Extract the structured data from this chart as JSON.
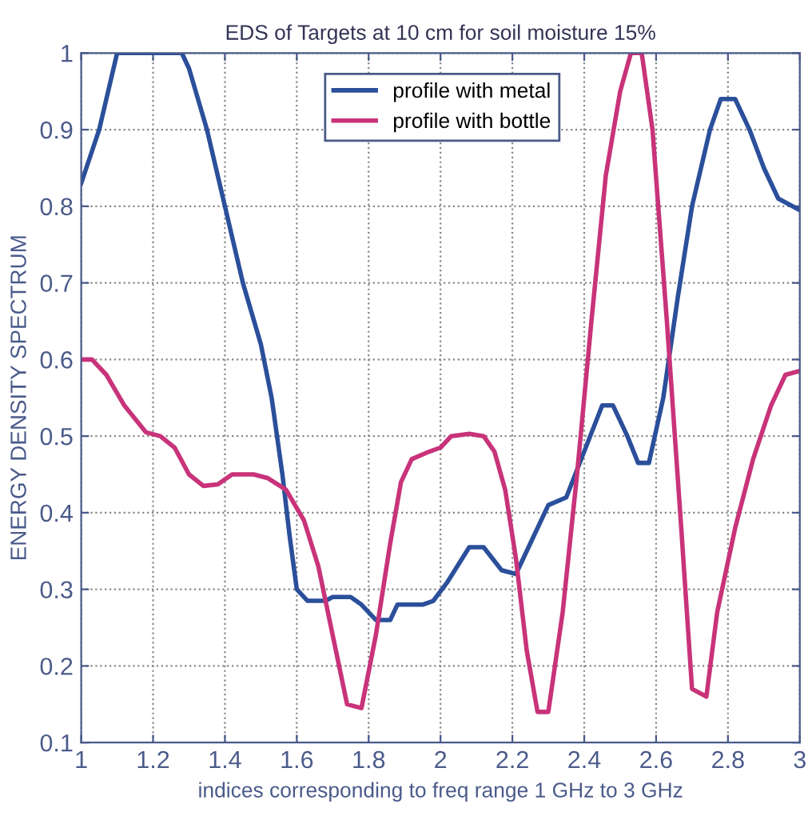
{
  "chart_data": {
    "type": "line",
    "title": "EDS of Targets at 10 cm for soil moisture 15%",
    "xlabel": "indices corresponding to freq range 1 GHz to 3 GHz",
    "ylabel": "ENERGY DENSITY SPECTRUM",
    "xlim": [
      1,
      3
    ],
    "ylim": [
      0.1,
      1
    ],
    "xticks": [
      1,
      1.2,
      1.4,
      1.6,
      1.8,
      2,
      2.2,
      2.4,
      2.6,
      2.8,
      3
    ],
    "yticks": [
      0.1,
      0.2,
      0.3,
      0.4,
      0.5,
      0.6,
      0.7,
      0.8,
      0.9,
      1
    ],
    "grid": true,
    "legend": "top right",
    "line_style": "solid",
    "series": [
      {
        "name": "profile with metal",
        "color": "#2b4f9a",
        "x": [
          1,
          1.05,
          1.1,
          1.15,
          1.2,
          1.28,
          1.3,
          1.35,
          1.4,
          1.45,
          1.5,
          1.53,
          1.56,
          1.58,
          1.6,
          1.63,
          1.68,
          1.7,
          1.75,
          1.78,
          1.82,
          1.86,
          1.88,
          1.95,
          1.98,
          2.02,
          2.08,
          2.12,
          2.17,
          2.21,
          2.25,
          2.3,
          2.35,
          2.4,
          2.45,
          2.48,
          2.52,
          2.55,
          2.58,
          2.62,
          2.66,
          2.7,
          2.75,
          2.78,
          2.82,
          2.86,
          2.9,
          2.94,
          3
        ],
        "values": [
          0.83,
          0.9,
          1,
          1,
          1,
          1,
          0.98,
          0.9,
          0.8,
          0.7,
          0.62,
          0.55,
          0.45,
          0.37,
          0.3,
          0.285,
          0.285,
          0.29,
          0.29,
          0.28,
          0.26,
          0.26,
          0.28,
          0.28,
          0.285,
          0.31,
          0.355,
          0.355,
          0.325,
          0.32,
          0.36,
          0.41,
          0.42,
          0.48,
          0.54,
          0.54,
          0.5,
          0.465,
          0.465,
          0.55,
          0.68,
          0.8,
          0.9,
          0.94,
          0.94,
          0.9,
          0.85,
          0.81,
          0.795
        ]
      },
      {
        "name": "profile with bottle",
        "color": "#c8337a",
        "x": [
          1,
          1.03,
          1.07,
          1.12,
          1.18,
          1.22,
          1.26,
          1.3,
          1.34,
          1.38,
          1.42,
          1.48,
          1.52,
          1.57,
          1.62,
          1.66,
          1.7,
          1.74,
          1.78,
          1.82,
          1.86,
          1.89,
          1.92,
          1.97,
          2,
          2.03,
          2.08,
          2.12,
          2.15,
          2.18,
          2.21,
          2.24,
          2.27,
          2.3,
          2.34,
          2.38,
          2.42,
          2.46,
          2.5,
          2.53,
          2.56,
          2.59,
          2.63,
          2.67,
          2.7,
          2.74,
          2.77,
          2.82,
          2.87,
          2.92,
          2.96,
          3
        ],
        "values": [
          0.6,
          0.6,
          0.58,
          0.54,
          0.505,
          0.5,
          0.485,
          0.45,
          0.435,
          0.437,
          0.45,
          0.45,
          0.445,
          0.43,
          0.39,
          0.33,
          0.24,
          0.15,
          0.145,
          0.24,
          0.36,
          0.44,
          0.47,
          0.48,
          0.485,
          0.5,
          0.503,
          0.5,
          0.48,
          0.43,
          0.34,
          0.22,
          0.14,
          0.14,
          0.27,
          0.45,
          0.65,
          0.84,
          0.95,
          1,
          1,
          0.9,
          0.65,
          0.38,
          0.17,
          0.16,
          0.27,
          0.38,
          0.47,
          0.54,
          0.58,
          0.585
        ]
      }
    ]
  }
}
